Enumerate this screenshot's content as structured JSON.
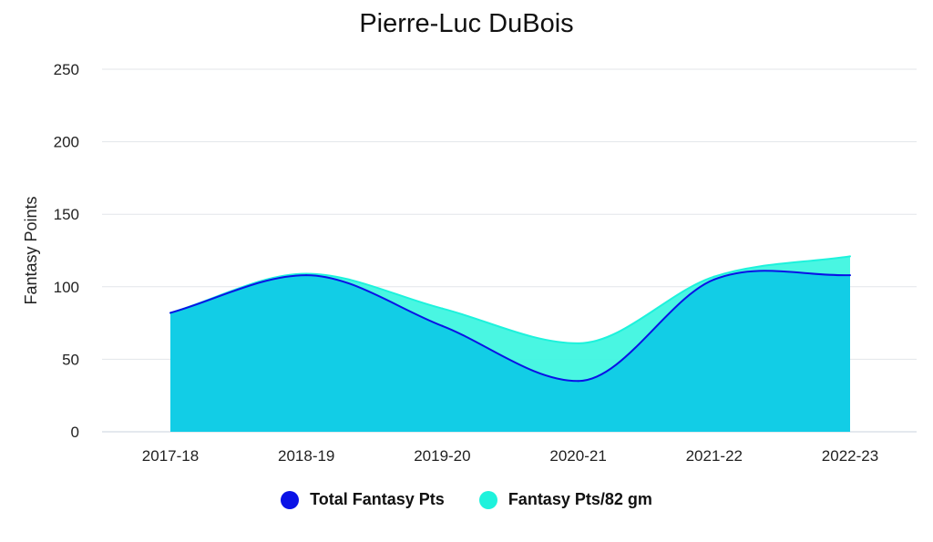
{
  "chart_data": {
    "type": "area",
    "title": "Pierre-Luc DuBois",
    "xlabel": "",
    "ylabel": "Fantasy Points",
    "categories": [
      "2017-18",
      "2018-19",
      "2019-20",
      "2020-21",
      "2021-22",
      "2022-23"
    ],
    "ylim": [
      0,
      250
    ],
    "yticks": [
      0,
      50,
      100,
      150,
      200,
      250
    ],
    "grid": true,
    "legend_position": "bottom",
    "series": [
      {
        "name": "Total Fantasy Pts",
        "values": [
          82,
          108,
          73,
          35,
          105,
          108
        ],
        "color": "#0a12e6",
        "fill": "#12cde6"
      },
      {
        "name": "Fantasy Pts/82 gm",
        "values": [
          82,
          109,
          85,
          61,
          107,
          121
        ],
        "color": "#1ef2dc",
        "fill": "#3ff5e0"
      }
    ]
  }
}
